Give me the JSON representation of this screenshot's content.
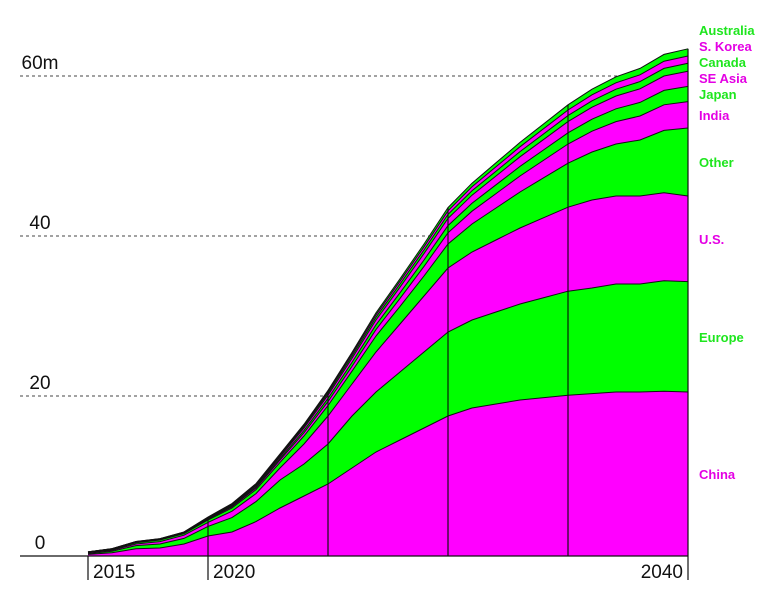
{
  "chart_data": {
    "type": "area",
    "stacked": true,
    "x": [
      2015,
      2016,
      2017,
      2018,
      2019,
      2020,
      2021,
      2022,
      2023,
      2024,
      2025,
      2026,
      2027,
      2028,
      2029,
      2030,
      2031,
      2032,
      2033,
      2034,
      2035,
      2036,
      2037,
      2038,
      2039,
      2040
    ],
    "x_tick_labels": [
      "2015",
      "2020",
      "2040"
    ],
    "xlim": [
      2015,
      2040
    ],
    "y_tick_labels": [
      "0",
      "20",
      "40",
      "60m"
    ],
    "ylim": [
      0,
      66
    ],
    "grid": true,
    "legend_position": "right-end labels",
    "series": [
      {
        "name": "China",
        "color": "#ff00ff",
        "values": [
          0.2,
          0.4,
          0.9,
          1.0,
          1.5,
          2.5,
          3.0,
          4.3,
          6.0,
          7.5,
          9.0,
          11.0,
          13.0,
          14.5,
          16.0,
          17.5,
          18.5,
          19.0,
          19.5,
          19.8,
          20.1,
          20.3,
          20.5,
          20.5,
          20.6,
          20.5
        ]
      },
      {
        "name": "Europe",
        "color": "#00ff00",
        "values": [
          0.1,
          0.2,
          0.4,
          0.5,
          0.7,
          1.2,
          1.8,
          2.5,
          3.5,
          4.0,
          5.0,
          6.5,
          7.5,
          8.5,
          9.5,
          10.5,
          11.0,
          11.5,
          12.0,
          12.5,
          13.0,
          13.2,
          13.5,
          13.5,
          13.8,
          13.8
        ]
      },
      {
        "name": "U.S.",
        "color": "#ff00ff",
        "values": [
          0.1,
          0.1,
          0.2,
          0.3,
          0.4,
          0.5,
          0.8,
          1.0,
          1.5,
          2.5,
          3.5,
          4.0,
          5.0,
          6.0,
          7.0,
          8.0,
          8.5,
          9.0,
          9.5,
          10.0,
          10.5,
          11.0,
          11.0,
          11.0,
          11.0,
          10.7
        ]
      },
      {
        "name": "Other",
        "color": "#00ff00",
        "values": [
          0.05,
          0.1,
          0.15,
          0.2,
          0.2,
          0.3,
          0.4,
          0.5,
          0.7,
          1.0,
          1.3,
          1.6,
          2.0,
          2.2,
          2.5,
          3.0,
          3.5,
          4.0,
          4.5,
          5.0,
          5.5,
          6.0,
          6.5,
          7.0,
          7.8,
          8.5
        ]
      },
      {
        "name": "India",
        "color": "#ff00ff",
        "values": [
          0.02,
          0.03,
          0.05,
          0.05,
          0.05,
          0.1,
          0.15,
          0.2,
          0.3,
          0.4,
          0.5,
          0.6,
          0.8,
          1.0,
          1.2,
          1.4,
          1.6,
          1.8,
          2.0,
          2.2,
          2.4,
          2.6,
          2.8,
          3.0,
          3.2,
          3.3
        ]
      },
      {
        "name": "Japan",
        "color": "#00ff00",
        "values": [
          0.03,
          0.05,
          0.05,
          0.05,
          0.05,
          0.1,
          0.1,
          0.15,
          0.2,
          0.3,
          0.4,
          0.5,
          0.6,
          0.7,
          0.8,
          0.9,
          1.0,
          1.1,
          1.2,
          1.3,
          1.4,
          1.5,
          1.6,
          1.7,
          1.8,
          1.9
        ]
      },
      {
        "name": "SE Asia",
        "color": "#ff00ff",
        "values": [
          0.0,
          0.01,
          0.02,
          0.02,
          0.03,
          0.05,
          0.1,
          0.15,
          0.2,
          0.3,
          0.4,
          0.5,
          0.6,
          0.7,
          0.8,
          0.9,
          1.0,
          1.1,
          1.2,
          1.3,
          1.4,
          1.5,
          1.6,
          1.7,
          1.8,
          1.9
        ]
      },
      {
        "name": "Canada",
        "color": "#00ff00",
        "values": [
          0.01,
          0.01,
          0.02,
          0.02,
          0.03,
          0.05,
          0.1,
          0.1,
          0.15,
          0.2,
          0.25,
          0.3,
          0.35,
          0.4,
          0.45,
          0.5,
          0.55,
          0.6,
          0.65,
          0.7,
          0.75,
          0.8,
          0.85,
          0.9,
          0.95,
          1.0
        ]
      },
      {
        "name": "S. Korea",
        "color": "#ff00ff",
        "values": [
          0.01,
          0.01,
          0.02,
          0.02,
          0.03,
          0.04,
          0.06,
          0.08,
          0.1,
          0.15,
          0.2,
          0.25,
          0.3,
          0.35,
          0.4,
          0.45,
          0.5,
          0.55,
          0.6,
          0.65,
          0.7,
          0.75,
          0.8,
          0.85,
          0.9,
          0.9
        ]
      },
      {
        "name": "Australia",
        "color": "#00ff00",
        "values": [
          0.0,
          0.01,
          0.01,
          0.02,
          0.02,
          0.03,
          0.05,
          0.07,
          0.1,
          0.12,
          0.15,
          0.2,
          0.25,
          0.3,
          0.35,
          0.4,
          0.45,
          0.5,
          0.55,
          0.6,
          0.65,
          0.7,
          0.75,
          0.8,
          0.85,
          0.9
        ]
      }
    ],
    "legend_colors": {
      "magenta": "#e400e4",
      "green": "#1ee61e"
    }
  }
}
